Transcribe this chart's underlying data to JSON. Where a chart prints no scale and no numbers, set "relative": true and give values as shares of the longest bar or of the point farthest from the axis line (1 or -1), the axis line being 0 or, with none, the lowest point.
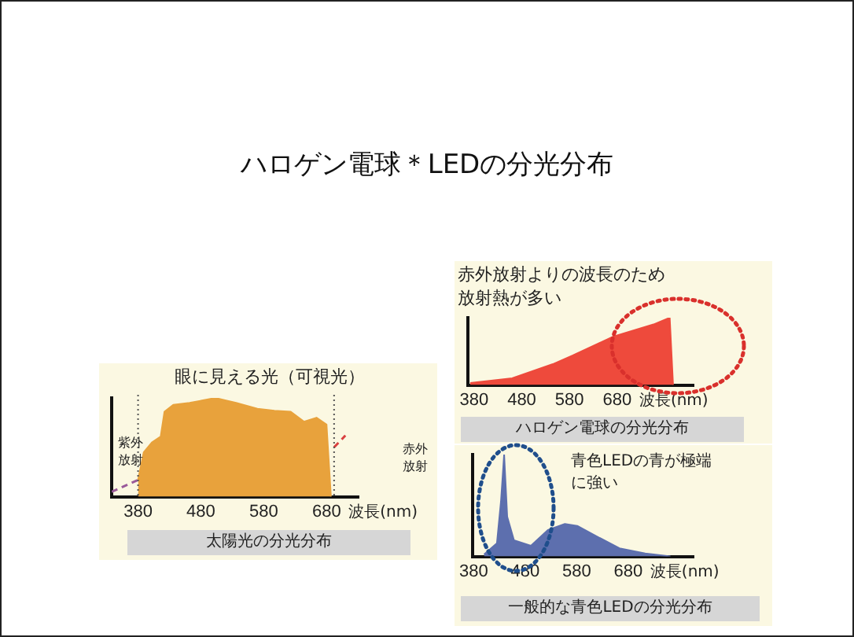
{
  "chart_data": [
    {
      "type": "area",
      "title": "太陽光の分光分布",
      "xlabel": "波長(nm)",
      "relative": true,
      "xlim": [
        338,
        731
      ],
      "xticks": [
        380,
        480,
        580,
        680
      ],
      "grid": false,
      "legend": false,
      "annotations": [
        "ハロゲン電球＊LEDの分光分布",
        "眼に見える光（可視光）",
        "紫外放射",
        "赤外放射"
      ],
      "ref_lines": [
        {
          "axis": "x",
          "value": 380,
          "line_style": "dotted",
          "color": "#555555"
        },
        {
          "axis": "x",
          "value": 692,
          "line_style": "dotted",
          "color": "#555555"
        }
      ],
      "series": [
        {
          "color": "#e8a23c",
          "x": [
            380,
            389,
            402,
            416,
            422,
            436,
            462,
            503,
            536,
            570,
            597,
            623,
            644,
            664,
            680,
            687
          ],
          "values": [
            0.17,
            0.45,
            0.55,
            0.61,
            0.86,
            0.93,
            0.95,
            1,
            0.95,
            0.89,
            0.87,
            0.86,
            0.76,
            0.8,
            0.73,
            0
          ]
        },
        {
          "type": "line",
          "line_style": "dashed",
          "color": "#9a5a9a",
          "x": [
            338,
            380
          ],
          "values": [
            0.05,
            0.17
          ]
        },
        {
          "type": "line",
          "line_style": "dashed",
          "color": "#d94040",
          "x": [
            692,
            710
          ],
          "values": [
            0.5,
            0.62
          ]
        }
      ]
    },
    {
      "type": "area",
      "title": "ハロゲン電球の分光分布",
      "xlabel": "波長(nm)",
      "relative": true,
      "xlim": [
        367,
        840
      ],
      "xticks": [
        380,
        480,
        580,
        680
      ],
      "grid": false,
      "legend": false,
      "annotations": [
        "赤外放射よりの波長のため放射熱が多い"
      ],
      "series": [
        {
          "color": "#ee4a3c",
          "x": [
            372,
            460,
            545,
            587,
            672,
            756,
            790,
            797
          ],
          "values": [
            0.03,
            0.1,
            0.31,
            0.44,
            0.72,
            0.9,
            1,
            0
          ]
        }
      ]
    },
    {
      "type": "area",
      "title": "一般的な青色LEDの分光分布",
      "xlabel": "波長(nm)",
      "relative": true,
      "xlim": [
        377,
        807
      ],
      "xticks": [
        380,
        480,
        580,
        680
      ],
      "grid": false,
      "legend": false,
      "annotations": [
        "青色LEDの青が極端に強い"
      ],
      "series": [
        {
          "color": "#5d6fae",
          "x": [
            400,
            425,
            433,
            439,
            445,
            458,
            491,
            524,
            557,
            581,
            614,
            663,
            713,
            762
          ],
          "values": [
            0.02,
            0.13,
            0.55,
            1,
            0.39,
            0.16,
            0.105,
            0.26,
            0.32,
            0.3,
            0.21,
            0.08,
            0.03,
            0
          ]
        }
      ]
    }
  ]
}
